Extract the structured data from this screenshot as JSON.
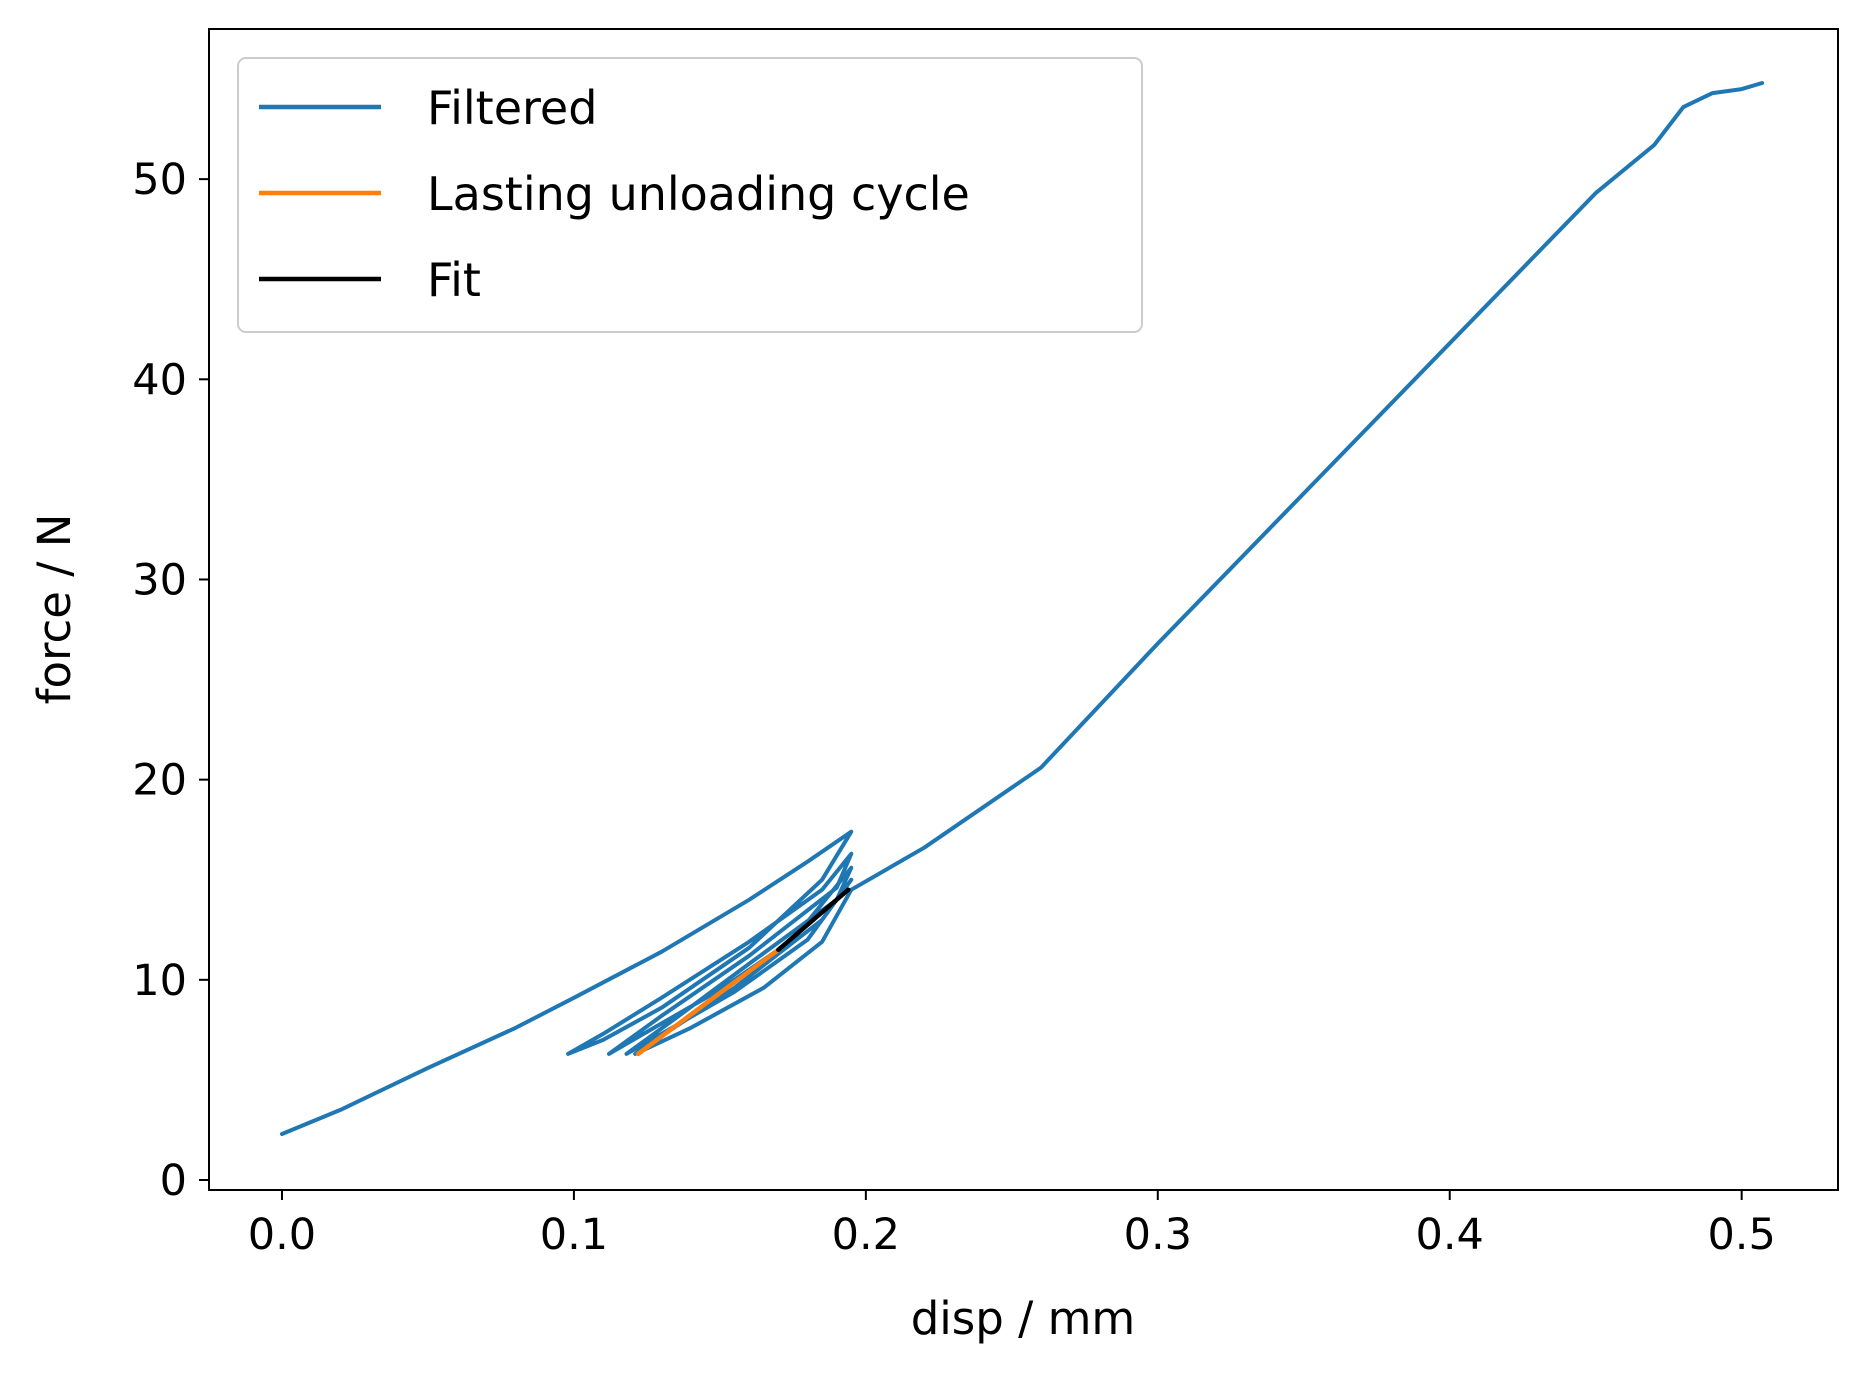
{
  "chart_data": {
    "type": "line",
    "title": "",
    "xlabel": "disp / mm",
    "ylabel": "force / N",
    "xlim": [
      -0.025,
      0.533
    ],
    "ylim": [
      -0.5,
      57.5
    ],
    "xticks": [
      0.0,
      0.1,
      0.2,
      0.3,
      0.4,
      0.5
    ],
    "xtick_labels": [
      "0.0",
      "0.1",
      "0.2",
      "0.3",
      "0.4",
      "0.5"
    ],
    "yticks": [
      0,
      10,
      20,
      30,
      40,
      50
    ],
    "ytick_labels": [
      "0",
      "10",
      "20",
      "30",
      "40",
      "50"
    ],
    "grid": false,
    "legend": {
      "position": "top-left"
    },
    "series": [
      {
        "name": "Filtered",
        "color": "#1f77b4",
        "x": [
          0.0,
          0.02,
          0.05,
          0.08,
          0.1,
          0.13,
          0.16,
          0.18,
          0.195,
          0.185,
          0.16,
          0.13,
          0.11,
          0.098,
          0.11,
          0.13,
          0.16,
          0.185,
          0.195,
          0.19,
          0.16,
          0.13,
          0.112,
          0.125,
          0.15,
          0.175,
          0.195,
          0.19,
          0.16,
          0.135,
          0.118,
          0.13,
          0.155,
          0.18,
          0.195,
          0.185,
          0.155,
          0.13,
          0.121,
          0.14,
          0.165,
          0.185,
          0.195,
          0.22,
          0.26,
          0.3,
          0.35,
          0.4,
          0.45,
          0.47,
          0.48,
          0.49,
          0.5,
          0.507
        ],
        "y": [
          2.3,
          3.5,
          5.6,
          7.6,
          9.1,
          11.4,
          14.0,
          15.9,
          17.4,
          15.0,
          11.6,
          8.6,
          7.0,
          6.3,
          7.3,
          9.1,
          11.9,
          14.5,
          16.3,
          14.6,
          11.2,
          8.2,
          6.3,
          7.4,
          9.5,
          12.0,
          15.6,
          14.0,
          10.8,
          8.1,
          6.3,
          7.3,
          9.4,
          12.0,
          15.0,
          13.0,
          9.6,
          7.2,
          6.3,
          7.6,
          9.6,
          11.9,
          14.5,
          16.6,
          20.6,
          26.8,
          34.3,
          41.8,
          49.3,
          51.7,
          53.6,
          54.3,
          54.5,
          54.8
        ]
      },
      {
        "name": "Lasting unloading cycle",
        "color": "#ff7f0e",
        "x": [
          0.122,
          0.145,
          0.17
        ],
        "y": [
          6.3,
          8.8,
          11.5
        ]
      },
      {
        "name": "Fit",
        "color": "#000000",
        "x": [
          0.17,
          0.182,
          0.194
        ],
        "y": [
          11.5,
          13.0,
          14.5
        ]
      }
    ]
  }
}
